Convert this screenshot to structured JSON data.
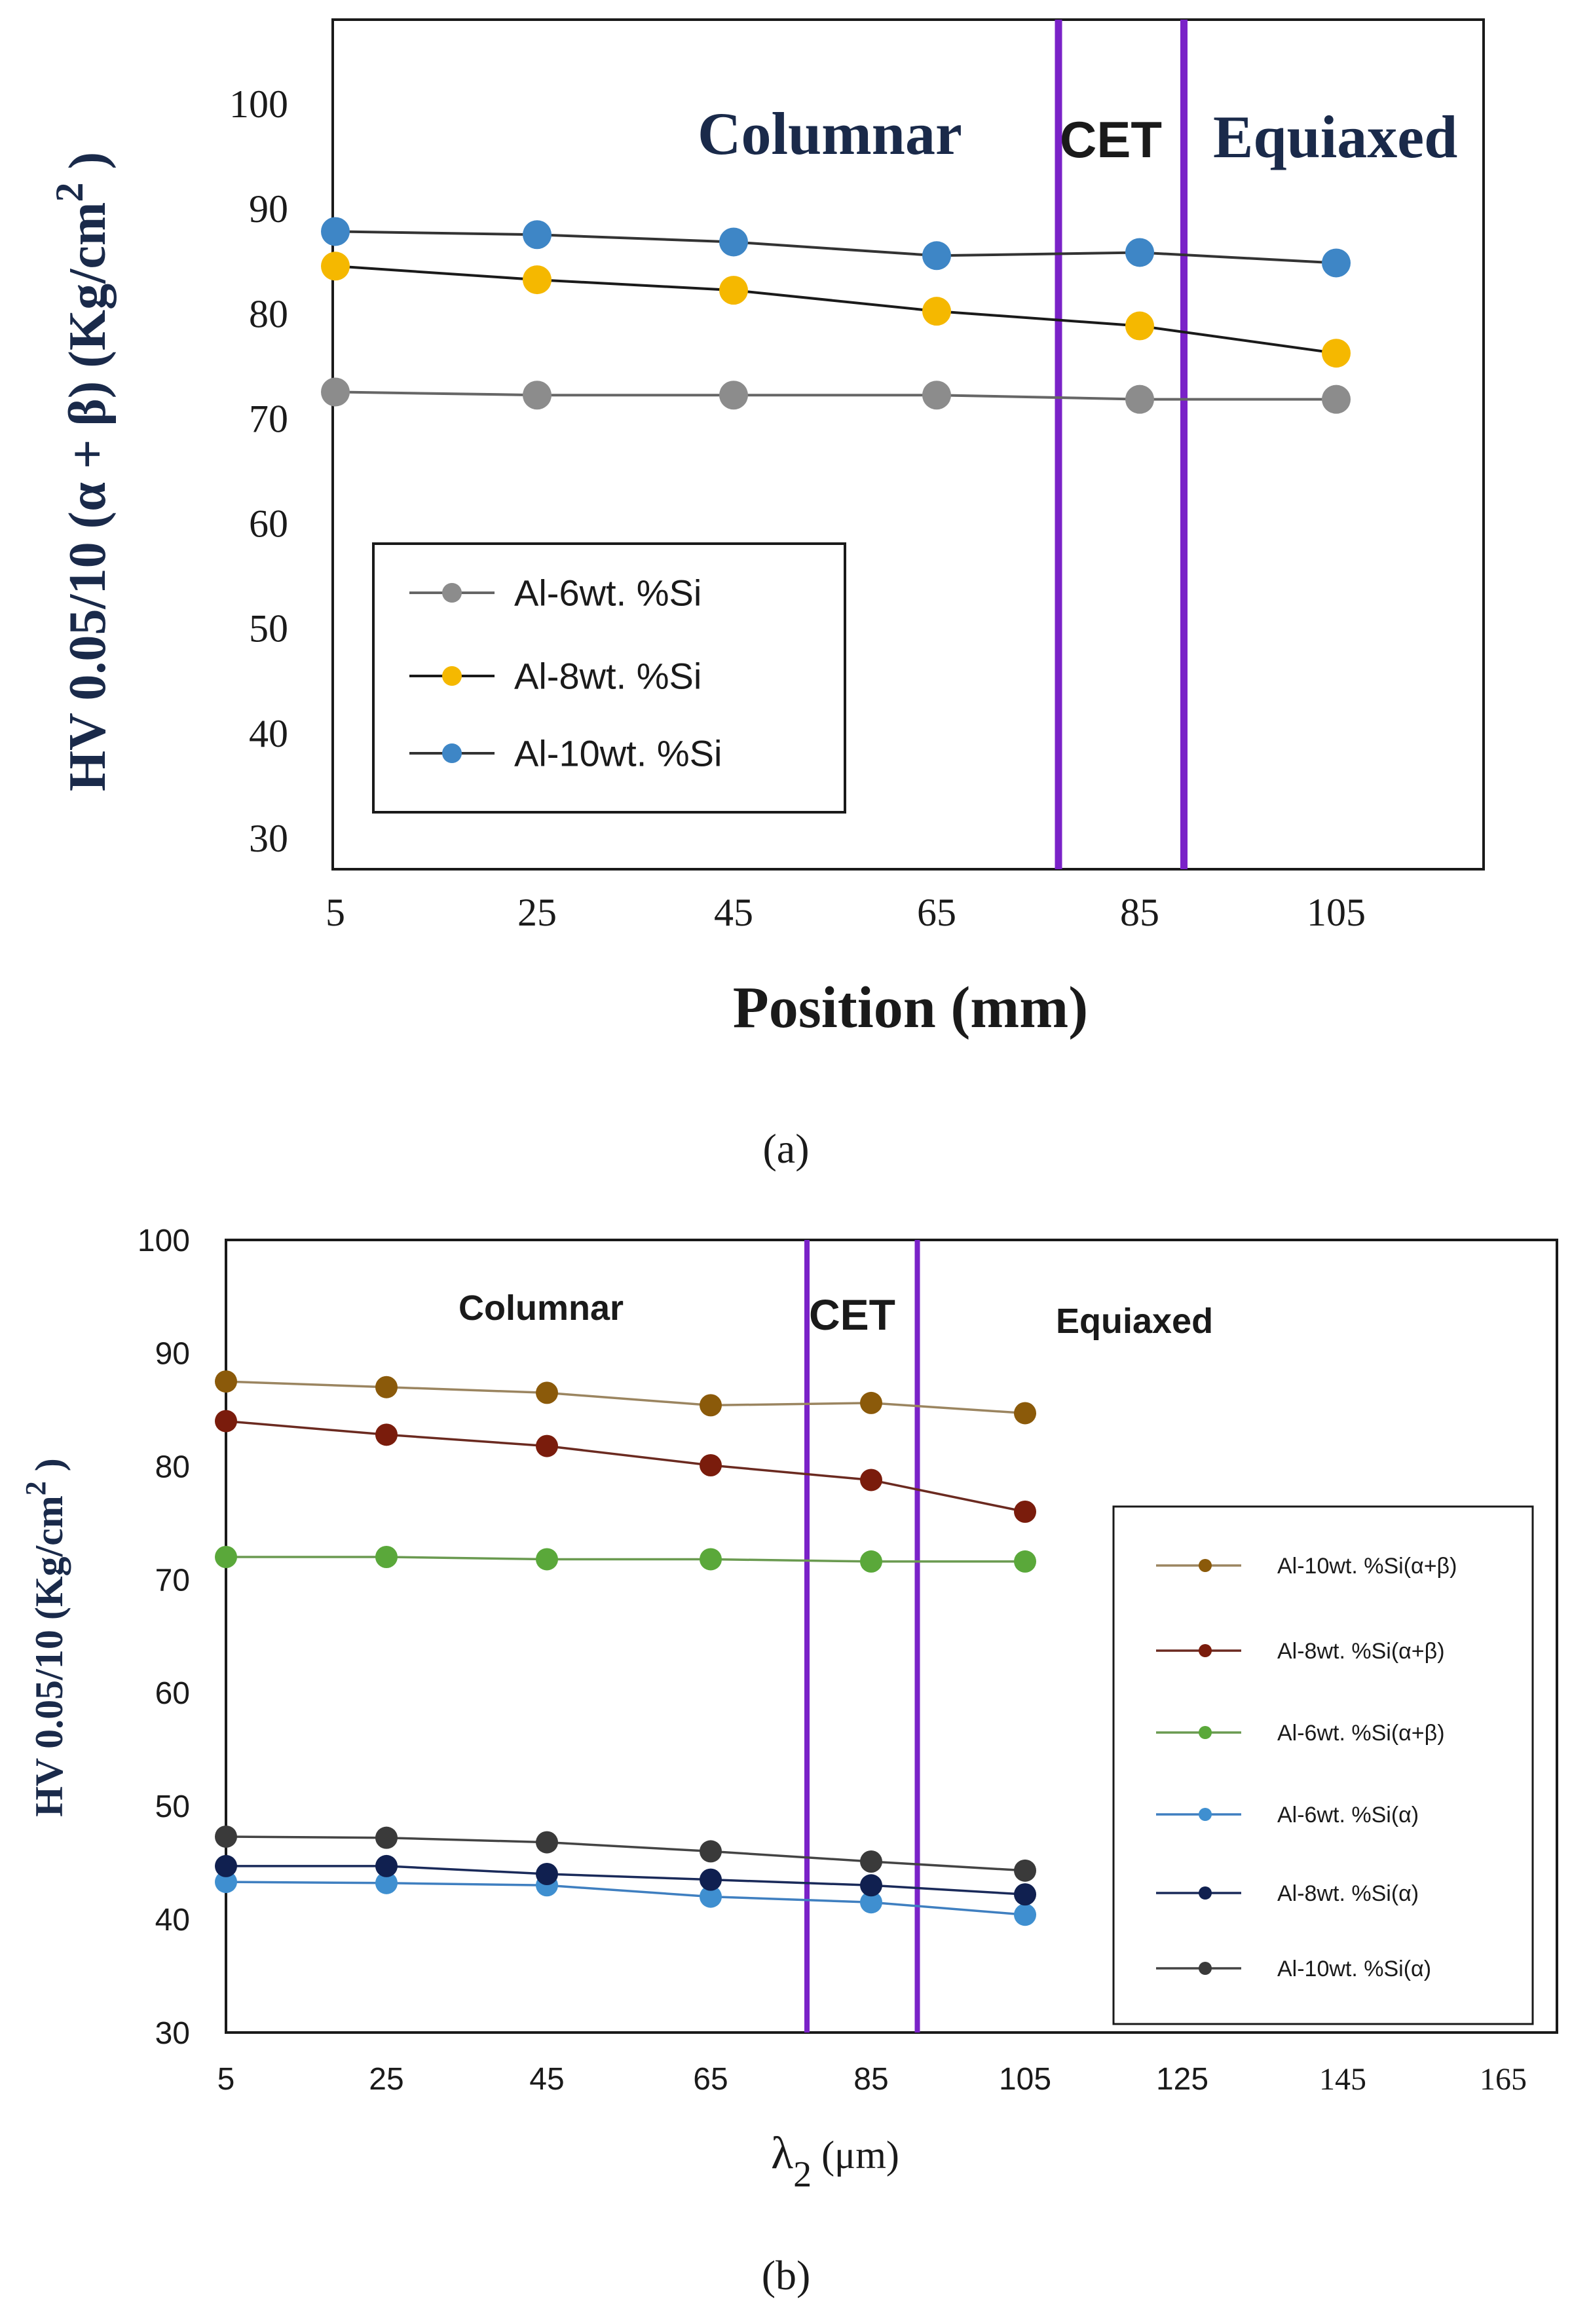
{
  "chart_data": [
    {
      "type": "line",
      "panel_label": "(a)",
      "xlabel": "Position (mm)",
      "ylabel": "HV 0.05/10 (α + β) (Kg/cm",
      "ylabel_sup": "2",
      "ylabel_close": " )",
      "x_ticks": [
        5,
        25,
        45,
        65,
        85,
        105
      ],
      "y_ticks": [
        30,
        40,
        50,
        60,
        70,
        80,
        90,
        100
      ],
      "xlim": [
        5,
        120
      ],
      "ylim": [
        27,
        108
      ],
      "grid": false,
      "legend_position": "bottom-left",
      "region_labels": {
        "columnar": "Columnar",
        "cet": "CET",
        "equiaxed": "Equiaxed"
      },
      "cet_lines_x": [
        77,
        89.5
      ],
      "x": [
        5,
        25,
        45,
        65,
        85,
        105
      ],
      "series": [
        {
          "name": "Al-6wt. %Si",
          "color": "#8c8c8c",
          "line": "#666666",
          "values": [
            72.5,
            72.2,
            72.2,
            72.2,
            71.8,
            71.8
          ]
        },
        {
          "name": "Al-8wt. %Si",
          "color": "#f5b800",
          "line": "#1a1a1a",
          "values": [
            84.5,
            83.2,
            82.2,
            80.2,
            78.8,
            76.2
          ]
        },
        {
          "name": "Al-10wt. %Si",
          "color": "#3e86c6",
          "line": "#333333",
          "values": [
            87.8,
            87.5,
            86.8,
            85.5,
            85.8,
            84.8
          ]
        }
      ]
    },
    {
      "type": "line",
      "panel_label": "(b)",
      "xlabel": "λ",
      "xlabel_sub": "2",
      "xlabel_unit": " (μm)",
      "ylabel": "HV 0.05/10 (Kg/cm",
      "ylabel_sup": "2",
      "ylabel_close": " )",
      "x_ticks": [
        5,
        25,
        45,
        65,
        85,
        105,
        125,
        145,
        165
      ],
      "y_ticks": [
        30,
        40,
        50,
        60,
        70,
        80,
        90,
        100
      ],
      "xlim": [
        5,
        165
      ],
      "ylim": [
        30,
        100
      ],
      "grid": false,
      "legend_position": "right",
      "region_labels": {
        "columnar": "Columnar",
        "cet": "CET",
        "equiaxed": "Equiaxed"
      },
      "cet_lines_x": [
        77,
        91
      ],
      "x": [
        5,
        25,
        45,
        65,
        85,
        105
      ],
      "series": [
        {
          "name": "Al-10wt. %Si(α+β)",
          "color": "#8b5a0a",
          "line": "#9b8560",
          "values": [
            87.5,
            87.0,
            86.5,
            85.4,
            85.6,
            84.7
          ]
        },
        {
          "name": "Al-8wt. %Si(α+β)",
          "color": "#7a1c0c",
          "line": "#6b2a20",
          "values": [
            84.0,
            82.8,
            81.8,
            80.1,
            78.8,
            76.0
          ]
        },
        {
          "name": "Al-6wt. %Si(α+β)",
          "color": "#5aa83a",
          "line": "#6a9a50",
          "values": [
            72.0,
            72.0,
            71.8,
            71.8,
            71.6,
            71.6
          ]
        },
        {
          "name": "Al-6wt. %Si(α)",
          "color": "#3f8fd0",
          "line": "#3f7fc0",
          "values": [
            43.3,
            43.2,
            43.0,
            42.0,
            41.5,
            40.4
          ]
        },
        {
          "name": "Al-8wt. %Si(α)",
          "color": "#102050",
          "line": "#1a2a5a",
          "values": [
            44.7,
            44.7,
            44.0,
            43.5,
            43.0,
            42.2
          ]
        },
        {
          "name": "Al-10wt. %Si(α)",
          "color": "#3a3a3a",
          "line": "#444444",
          "values": [
            47.3,
            47.2,
            46.8,
            46.0,
            45.1,
            44.3
          ]
        }
      ]
    }
  ]
}
